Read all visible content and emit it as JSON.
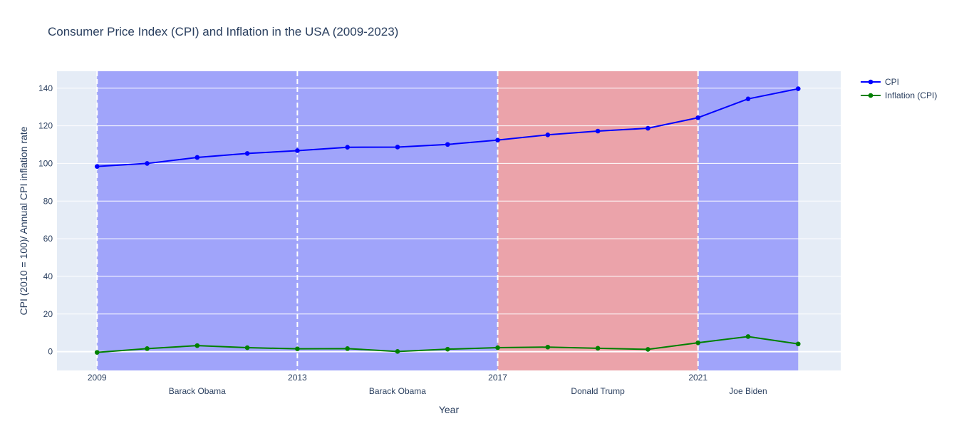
{
  "chart_data": {
    "type": "line",
    "title": "Consumer Price Index (CPI) and Inflation in the USA (2009-2023)",
    "xlabel": "Year",
    "ylabel": "CPI (2010 = 100)/ Annual CPI inflation rate",
    "xlim": [
      2008.2,
      2023.85
    ],
    "ylim": [
      -10,
      149
    ],
    "x_ticks": [
      2009,
      2013,
      2017,
      2021
    ],
    "y_ticks": [
      0,
      20,
      40,
      60,
      80,
      100,
      120,
      140
    ],
    "grid": true,
    "legend_position": "top-right",
    "x": [
      2009,
      2010,
      2011,
      2012,
      2013,
      2014,
      2015,
      2016,
      2017,
      2018,
      2019,
      2020,
      2021,
      2022,
      2023
    ],
    "series": [
      {
        "name": "CPI",
        "color": "#0000ff",
        "values": [
          98.4,
          100.0,
          103.2,
          105.3,
          106.8,
          108.6,
          108.7,
          110.1,
          112.4,
          115.2,
          117.2,
          118.7,
          124.3,
          134.3,
          139.7
        ]
      },
      {
        "name": "Inflation (CPI)",
        "color": "#008000",
        "values": [
          -0.4,
          1.6,
          3.2,
          2.1,
          1.5,
          1.6,
          0.1,
          1.3,
          2.1,
          2.4,
          1.8,
          1.2,
          4.7,
          8.0,
          4.1
        ]
      }
    ],
    "terms": [
      {
        "president": "Barack Obama",
        "start": 2009,
        "end": 2013,
        "party_color": "#a0a4fa",
        "label_x": 2011
      },
      {
        "president": "Barack Obama",
        "start": 2013,
        "end": 2017,
        "party_color": "#a0a4fa",
        "label_x": 2015
      },
      {
        "president": "Donald Trump",
        "start": 2017,
        "end": 2021,
        "party_color": "#eba3aa",
        "label_x": 2019
      },
      {
        "president": "Joe Biden",
        "start": 2021,
        "end": 2023,
        "party_color": "#a0a4fa",
        "label_x": 2022
      }
    ],
    "colors": {
      "plot_background": "#e5ecf6",
      "grid": "#ffffff",
      "text": "#2a3f5f"
    }
  }
}
